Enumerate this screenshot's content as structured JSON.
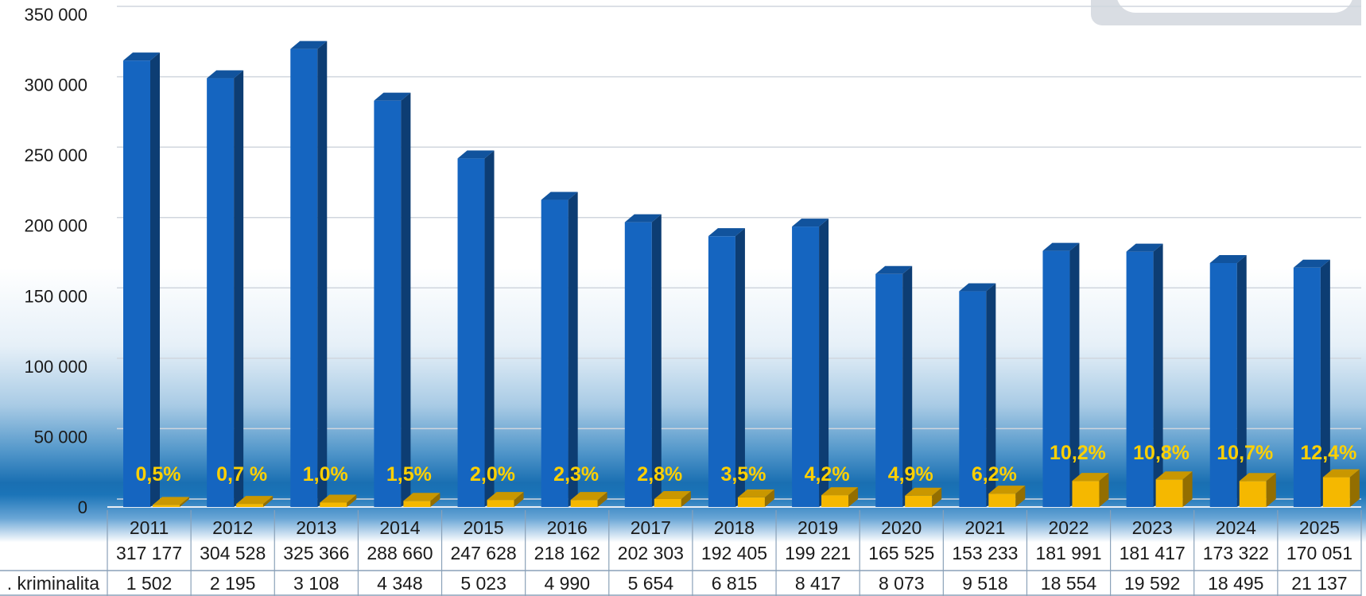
{
  "chart_data": {
    "type": "bar",
    "categories": [
      "2011",
      "2012",
      "2013",
      "2014",
      "2015",
      "2016",
      "2017",
      "2018",
      "2019",
      "2020",
      "2021",
      "2022",
      "2023",
      "2024",
      "2025"
    ],
    "series": [
      {
        "name": "",
        "values": [
          317177,
          304528,
          325366,
          288660,
          247628,
          218162,
          202303,
          192405,
          199221,
          165525,
          153233,
          181991,
          181417,
          173322,
          170051
        ],
        "color": "#1565c0"
      },
      {
        "name": "kriminalita",
        "values": [
          1502,
          2195,
          3108,
          4348,
          5023,
          4990,
          5654,
          6815,
          8417,
          8073,
          9518,
          18554,
          19592,
          18495,
          21137
        ],
        "color": "#f5b800"
      }
    ],
    "total_labels": [
      "317 177",
      "304 528",
      "325 366",
      "288 660",
      "247 628",
      "218 162",
      "202 303",
      "192 405",
      "199 221",
      "165 525",
      "153 233",
      "181 991",
      "181 417",
      "173 322",
      "170 051"
    ],
    "sub_labels": [
      "1 502",
      "2 195",
      "3 108",
      "4 348",
      "5 023",
      "4 990",
      "5 654",
      "6 815",
      "8 417",
      "8 073",
      "9 518",
      "18 554",
      "19 592",
      "18 495",
      "21 137"
    ],
    "percent_labels": [
      "0,5%",
      "0,7 %",
      "1,0%",
      "1,5%",
      "2,0%",
      "2,3%",
      "2,8%",
      "3,5%",
      "4,2%",
      "4,9%",
      "6,2%",
      "10,2%",
      "10,8%",
      "10,7%",
      "12,4%"
    ],
    "row_label": ". kriminalita",
    "yticks": [
      0,
      50000,
      100000,
      150000,
      200000,
      250000,
      300000,
      350000
    ],
    "ytick_labels": [
      "0",
      "50 000",
      "100 000",
      "150 000",
      "200 000",
      "250 000",
      "300 000",
      "350 000"
    ],
    "ylim": [
      0,
      350000
    ],
    "grid": true,
    "title": "",
    "xlabel": "",
    "ylabel": ""
  }
}
